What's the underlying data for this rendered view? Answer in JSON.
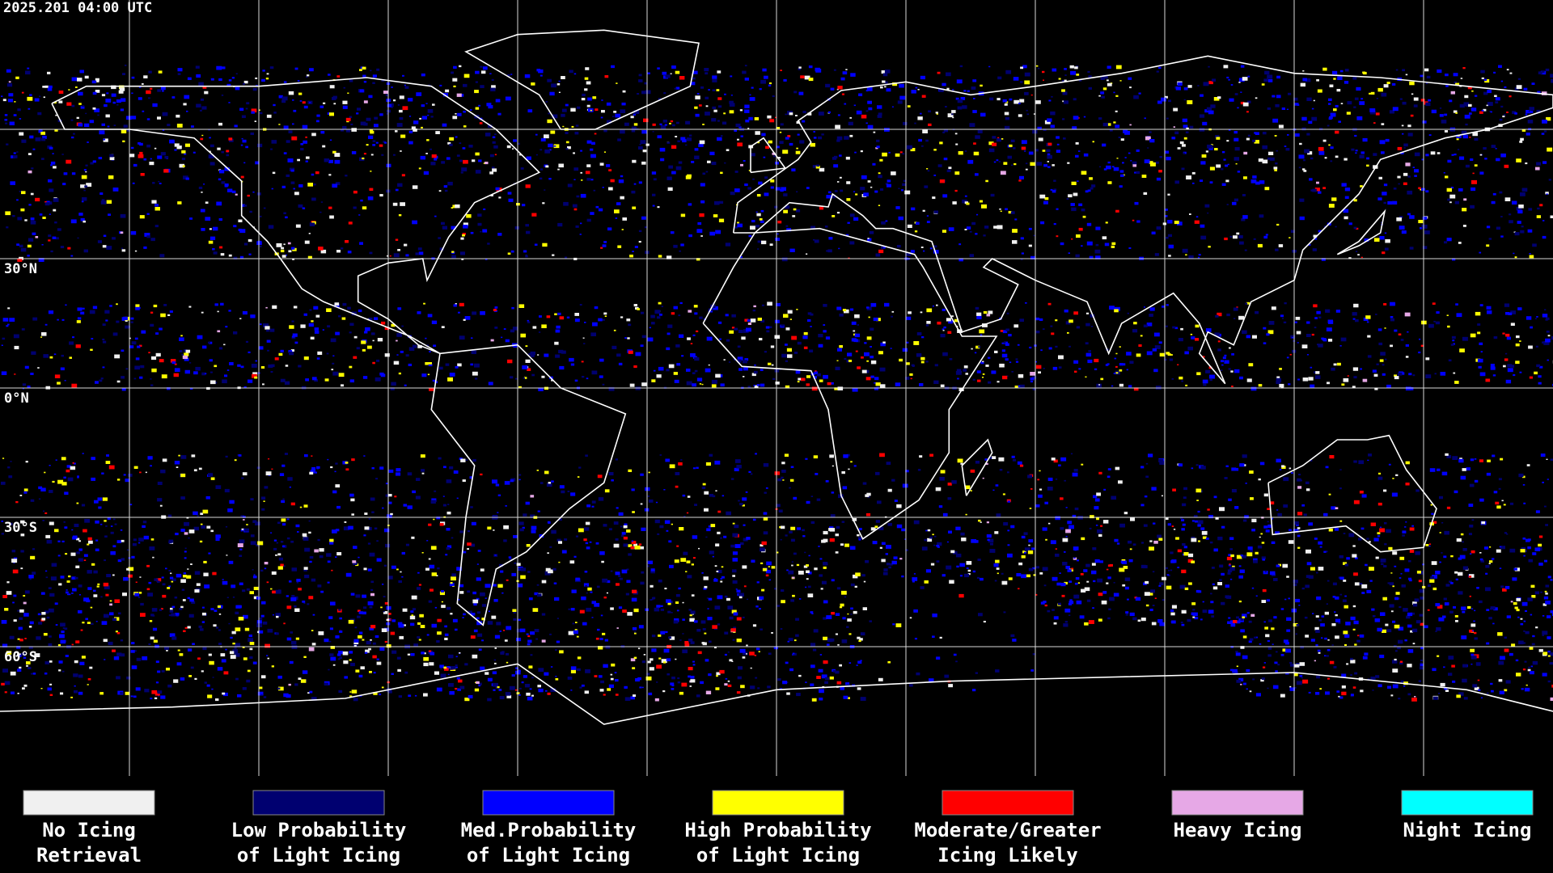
{
  "timestamp": "2025.201 04:00 UTC",
  "map": {
    "lat_labels": [
      "30°N",
      "0°N",
      "30°S",
      "60°S"
    ]
  },
  "legend": [
    {
      "label": [
        "No Icing",
        "Retrieval"
      ],
      "color": "#f0f0f0"
    },
    {
      "label": [
        "Low Probability",
        "of Light Icing"
      ],
      "color": "#000070"
    },
    {
      "label": [
        "Med.Probability",
        "of Light Icing"
      ],
      "color": "#0000ff"
    },
    {
      "label": [
        "High Probability",
        "of Light Icing"
      ],
      "color": "#ffff00"
    },
    {
      "label": [
        "Moderate/Greater",
        "Icing Likely"
      ],
      "color": "#ff0000"
    },
    {
      "label": [
        "Heavy Icing"
      ],
      "color": "#e6a8e6"
    },
    {
      "label": [
        "Night Icing"
      ],
      "color": "#00ffff"
    }
  ]
}
